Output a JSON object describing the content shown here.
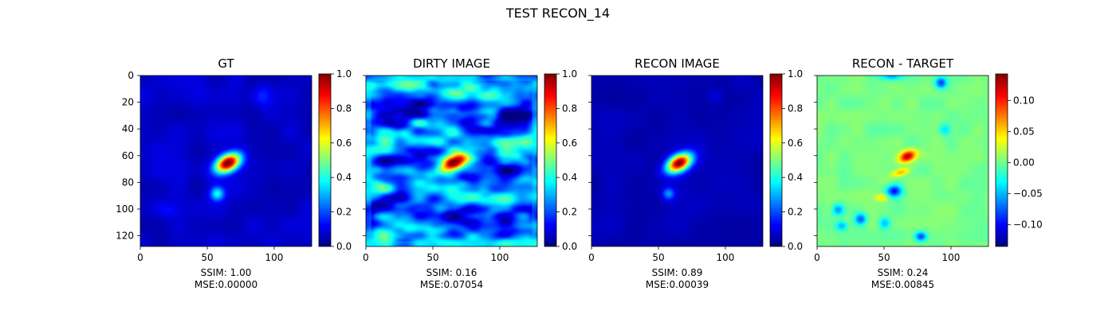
{
  "chart_data": {
    "type": "heatmap",
    "title": "TEST RECON_14",
    "colormap": "jet",
    "colormap_stops": [
      "#00007f",
      "#0000ff",
      "#007fff",
      "#00ffff",
      "#7fff7f",
      "#ffff00",
      "#ff7f00",
      "#ff0000",
      "#7f0000"
    ],
    "image_size": [
      128,
      128
    ],
    "x_ticks": [
      0,
      50,
      100
    ],
    "y_ticks": [
      0,
      20,
      40,
      60,
      80,
      100,
      120
    ],
    "panels": [
      {
        "title": "GT",
        "subtitle": [
          "SSIM: 1.00",
          "MSE:0.00000"
        ],
        "vmin": 0.0,
        "vmax": 1.0,
        "colorbar_ticks": [
          "0.0",
          "0.2",
          "0.4",
          "0.6",
          "0.8",
          "1.0"
        ],
        "colorbar_values": [
          0.0,
          0.2,
          0.4,
          0.6,
          0.8,
          1.0
        ],
        "show_y_labels": true
      },
      {
        "title": "DIRTY IMAGE",
        "subtitle": [
          "SSIM: 0.16",
          "MSE:0.07054"
        ],
        "vmin": 0.0,
        "vmax": 1.0,
        "colorbar_ticks": [
          "0.0",
          "0.2",
          "0.4",
          "0.6",
          "0.8",
          "1.0"
        ],
        "colorbar_values": [
          0.0,
          0.2,
          0.4,
          0.6,
          0.8,
          1.0
        ],
        "show_y_labels": false
      },
      {
        "title": "RECON IMAGE",
        "subtitle": [
          "SSIM: 0.89",
          "MSE:0.00039"
        ],
        "vmin": 0.0,
        "vmax": 1.0,
        "colorbar_ticks": [
          "0.0",
          "0.2",
          "0.4",
          "0.6",
          "0.8",
          "1.0"
        ],
        "colorbar_values": [
          0.0,
          0.2,
          0.4,
          0.6,
          0.8,
          1.0
        ],
        "show_y_labels": false
      },
      {
        "title": "RECON - TARGET",
        "subtitle": [
          "SSIM: 0.24",
          "MSE:0.00845"
        ],
        "vmin": -0.135,
        "vmax": 0.143,
        "colorbar_ticks": [
          "0.10",
          "0.05",
          "0.00",
          "−0.05",
          "−0.10"
        ],
        "colorbar_values": [
          0.1,
          0.05,
          0.0,
          -0.05,
          -0.1
        ],
        "show_y_labels": false
      }
    ]
  }
}
